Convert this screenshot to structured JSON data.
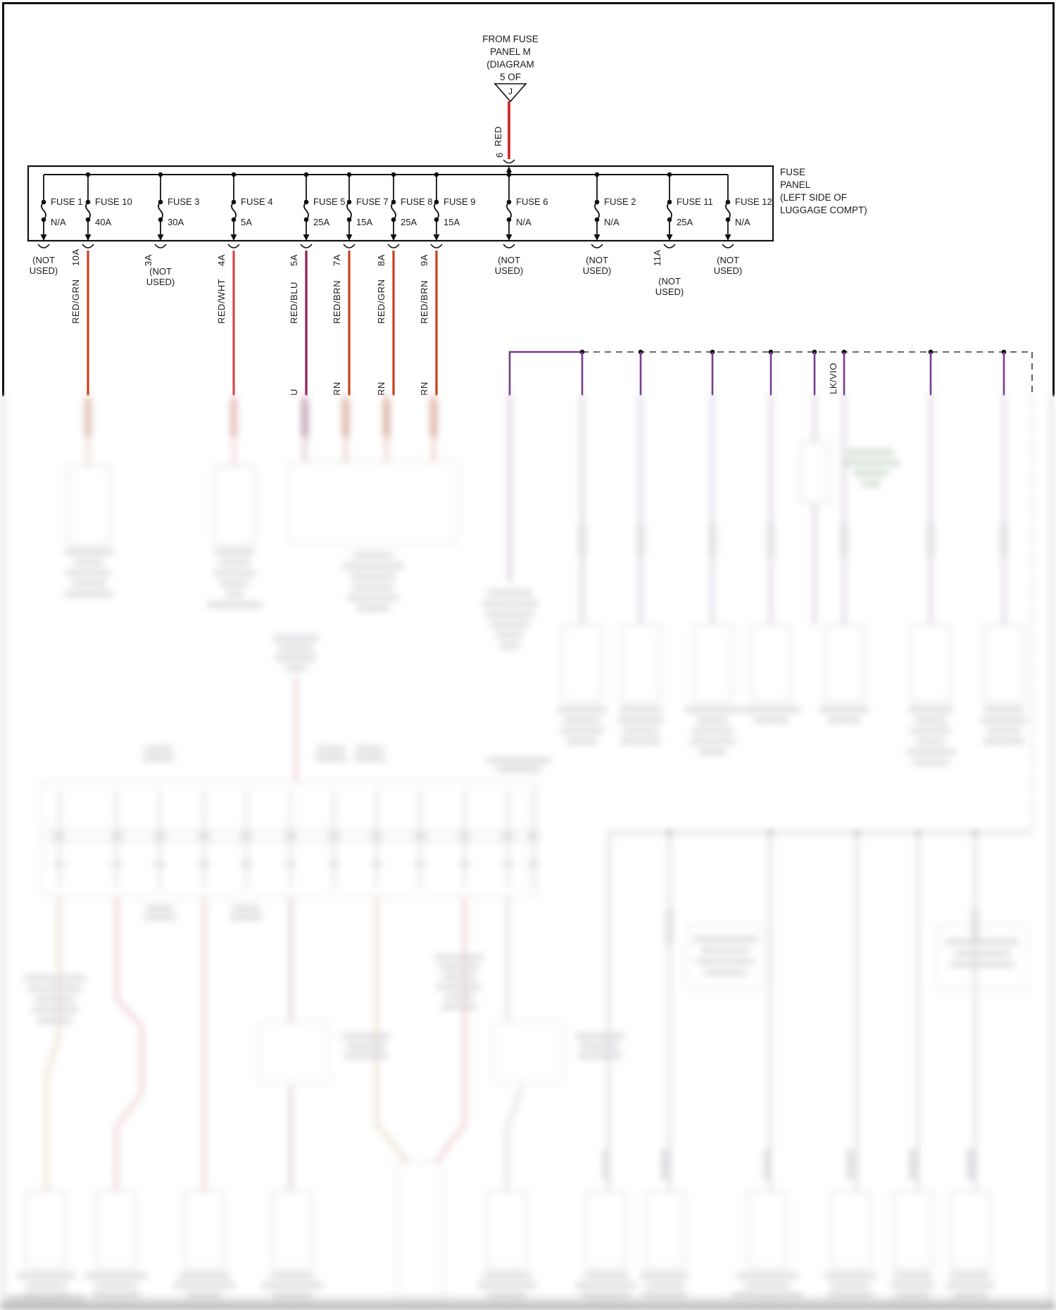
{
  "source_feed": {
    "lines": [
      "FROM FUSE",
      "PANEL M",
      "(DIAGRAM",
      "5 OF"
    ],
    "triangle_letter": "J",
    "wire_color_label": "RED",
    "terminal_number": "6"
  },
  "fuse_panel": {
    "title_lines": [
      "FUSE",
      "PANEL",
      "(LEFT SIDE OF",
      "LUGGAGE COMPT)"
    ],
    "fuses": [
      {
        "name": "FUSE 1",
        "rating": "N/A",
        "status": "(NOT USED)"
      },
      {
        "name": "FUSE 10",
        "rating": "40A",
        "terminal": "10A",
        "wire": "RED/GRN"
      },
      {
        "name": "FUSE 3",
        "rating": "30A",
        "terminal": "3A",
        "status": "(NOT USED)"
      },
      {
        "name": "FUSE 4",
        "rating": "5A",
        "terminal": "4A",
        "wire": "RED/WHT"
      },
      {
        "name": "FUSE 5",
        "rating": "25A",
        "terminal": "5A",
        "wire": "RED/BLU"
      },
      {
        "name": "FUSE 7",
        "rating": "15A",
        "terminal": "7A",
        "wire": "RED/BRN"
      },
      {
        "name": "FUSE 8",
        "rating": "25A",
        "terminal": "8A",
        "wire": "RED/GRN"
      },
      {
        "name": "FUSE 9",
        "rating": "15A",
        "terminal": "9A",
        "wire": "RED/BRN"
      },
      {
        "name": "FUSE 6",
        "rating": "N/A",
        "status": "(NOT USED)"
      },
      {
        "name": "FUSE 2",
        "rating": "N/A",
        "status": "(NOT USED)"
      },
      {
        "name": "FUSE 11",
        "rating": "25A",
        "terminal": "11A",
        "status": "(NOT USED)"
      },
      {
        "name": "FUSE 12",
        "rating": "N/A",
        "status": "(NOT USED)"
      }
    ]
  },
  "bus_wire_label": "LK/VIO",
  "wire_label_fragments": [
    "U",
    "RN",
    "RN",
    "RN"
  ],
  "colors": {
    "feed_wire": "#cc1f1f",
    "red_grn": "#c8401a",
    "red_wht": "#d84848",
    "red_blu": "#8e2156",
    "red_brn": "#c8401a",
    "violet_bus": "#7a3b8f",
    "line": "#1a1a1a"
  }
}
